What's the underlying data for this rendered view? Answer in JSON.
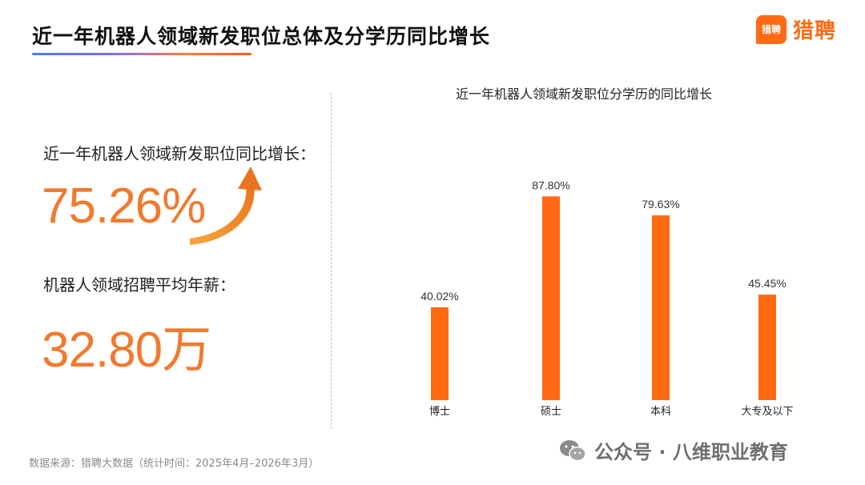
{
  "header": {
    "title": "近一年机器人领域新发职位总体及分学历同比增长",
    "brand_icon_text": "猎聘",
    "brand_name": "猎聘",
    "brand_color": "#ff6a13"
  },
  "stats": {
    "growth_label": "近一年机器人领域新发职位同比增长：",
    "growth_value": "75.26%",
    "salary_label": "机器人领域招聘平均年薪：",
    "salary_value": "32.80万",
    "value_color": "#f07a2e"
  },
  "chart_data": {
    "type": "bar",
    "title": "近一年机器人领域新发职位分学历的同比增长",
    "categories": [
      "博士",
      "硕士",
      "本科",
      "大专及以下"
    ],
    "values": [
      40.02,
      87.8,
      79.63,
      45.45
    ],
    "data_labels": [
      "40.02%",
      "87.80%",
      "79.63%",
      "45.45%"
    ],
    "bar_color": "#ff6a13",
    "ylim": [
      0,
      100
    ],
    "grid": false,
    "legend": "none"
  },
  "footer": {
    "source": "数据来源：猎聘大数据（统计时间：2025年4月–2026年3月）",
    "watermark": "公众号 · 八维职业教育"
  }
}
